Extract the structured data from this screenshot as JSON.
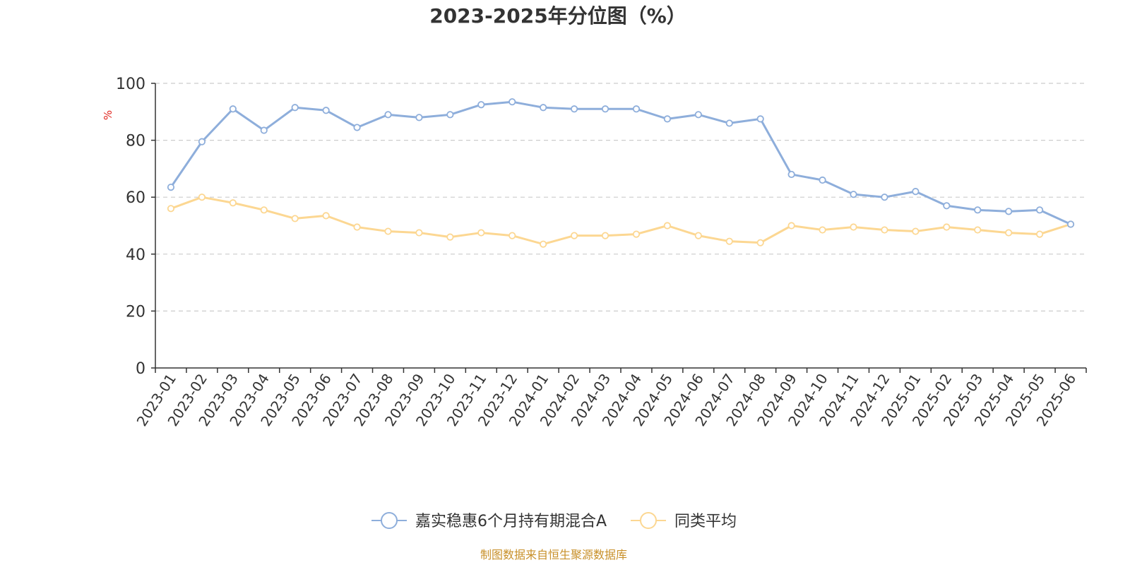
{
  "chart_data": {
    "type": "line",
    "title": "2023-2025年分位图（%）",
    "ylabel": "%",
    "ylim": [
      0,
      100
    ],
    "yticks": [
      0,
      20,
      40,
      60,
      80,
      100
    ],
    "grid": true,
    "legend_position": "bottom",
    "categories": [
      "2023-01",
      "2023-02",
      "2023-03",
      "2023-04",
      "2023-05",
      "2023-06",
      "2023-07",
      "2023-08",
      "2023-09",
      "2023-10",
      "2023-11",
      "2023-12",
      "2024-01",
      "2024-02",
      "2024-03",
      "2024-04",
      "2024-05",
      "2024-06",
      "2024-07",
      "2024-08",
      "2024-09",
      "2024-10",
      "2024-11",
      "2024-12",
      "2025-01",
      "2025-02",
      "2025-03",
      "2025-04",
      "2025-05",
      "2025-06"
    ],
    "series": [
      {
        "name": "嘉实稳惠6个月持有期混合A",
        "color": "#8eaedb",
        "values": [
          63.5,
          79.5,
          91.0,
          83.5,
          91.5,
          90.5,
          84.5,
          89.0,
          88.0,
          89.0,
          92.5,
          93.5,
          91.5,
          91.0,
          91.0,
          91.0,
          87.5,
          89.0,
          86.0,
          87.5,
          68.0,
          66.0,
          61.0,
          60.0,
          62.0,
          57.0,
          55.5,
          55.0,
          55.5,
          50.5
        ]
      },
      {
        "name": "同类平均",
        "color": "#fcd792",
        "values": [
          56.0,
          60.0,
          58.0,
          55.5,
          52.5,
          53.5,
          49.5,
          48.0,
          47.5,
          46.0,
          47.5,
          46.5,
          43.5,
          46.5,
          46.5,
          47.0,
          50.0,
          46.5,
          44.5,
          44.0,
          50.0,
          48.5,
          49.5,
          48.5,
          48.0,
          49.5,
          48.5,
          47.5,
          47.0,
          50.5
        ]
      }
    ]
  },
  "source_text": "制图数据来自恒生聚源数据库",
  "colors": {
    "axis": "#333333",
    "grid": "#cccccc",
    "unit_label": "#e0261f",
    "source": "#c8902a"
  }
}
